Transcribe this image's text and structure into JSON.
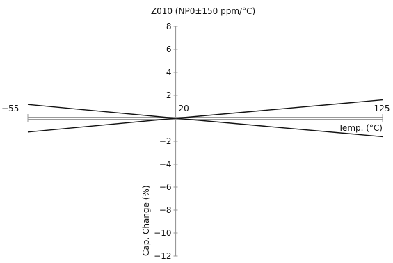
{
  "chart_data": {
    "type": "line",
    "title": "Z010 (NP0±150 ppm/°C)",
    "xlabel": "Temp. (°C)",
    "ylabel": "Cap. Change (%)",
    "x_ticks": [
      {
        "value": -55,
        "label": "−55"
      },
      {
        "value": 20,
        "label": "20"
      },
      {
        "value": 125,
        "label": "125"
      }
    ],
    "y_ticks": [
      {
        "value": 8,
        "label": "8"
      },
      {
        "value": 6,
        "label": "6"
      },
      {
        "value": 4,
        "label": "4"
      },
      {
        "value": 2,
        "label": "2"
      },
      {
        "value": -2,
        "label": "−2"
      },
      {
        "value": -4,
        "label": "−4"
      },
      {
        "value": -6,
        "label": "−6"
      },
      {
        "value": -8,
        "label": "−8"
      },
      {
        "value": -10,
        "label": "−10"
      },
      {
        "value": -12,
        "label": "−12"
      }
    ],
    "xlim": [
      -55,
      125
    ],
    "ylim": [
      -12,
      8
    ],
    "series": [
      {
        "x": [
          -55,
          20,
          125
        ],
        "y": [
          1.2,
          0,
          -1.6
        ]
      },
      {
        "x": [
          -55,
          20,
          125
        ],
        "y": [
          -1.2,
          0,
          1.6
        ]
      }
    ],
    "grid": false,
    "line_color": "#111111",
    "axis_color": "#999999"
  }
}
